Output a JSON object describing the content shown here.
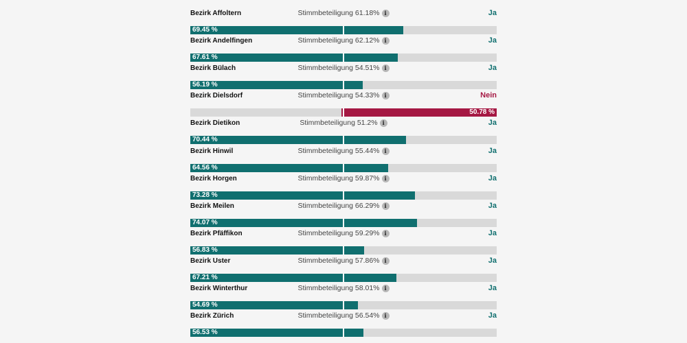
{
  "chart_data": {
    "type": "bar",
    "turnout_label": "Stimmbeteiligung",
    "colors": {
      "yes": "#106f6f",
      "no": "#a51843",
      "base": "#d9d9d9"
    },
    "rows": [
      {
        "name": "Bezirk Affoltern",
        "turnout": "61.18%",
        "result": "Ja",
        "share": 69.45,
        "share_label": "69.45 %"
      },
      {
        "name": "Bezirk Andelfingen",
        "turnout": "62.12%",
        "result": "Ja",
        "share": 67.61,
        "share_label": "67.61 %"
      },
      {
        "name": "Bezirk Bülach",
        "turnout": "54.51%",
        "result": "Ja",
        "share": 56.19,
        "share_label": "56.19 %"
      },
      {
        "name": "Bezirk Dielsdorf",
        "turnout": "54.33%",
        "result": "Nein",
        "share": 50.78,
        "share_label": "50.78 %"
      },
      {
        "name": "Bezirk Dietikon",
        "turnout": "51.2%",
        "result": "Ja",
        "share": 70.44,
        "share_label": "70.44 %"
      },
      {
        "name": "Bezirk Hinwil",
        "turnout": "55.44%",
        "result": "Ja",
        "share": 64.56,
        "share_label": "64.56 %"
      },
      {
        "name": "Bezirk Horgen",
        "turnout": "59.87%",
        "result": "Ja",
        "share": 73.28,
        "share_label": "73.28 %"
      },
      {
        "name": "Bezirk Meilen",
        "turnout": "66.29%",
        "result": "Ja",
        "share": 74.07,
        "share_label": "74.07 %"
      },
      {
        "name": "Bezirk Pfäffikon",
        "turnout": "59.29%",
        "result": "Ja",
        "share": 56.83,
        "share_label": "56.83 %"
      },
      {
        "name": "Bezirk Uster",
        "turnout": "57.86%",
        "result": "Ja",
        "share": 67.21,
        "share_label": "67.21 %"
      },
      {
        "name": "Bezirk Winterthur",
        "turnout": "58.01%",
        "result": "Ja",
        "share": 54.69,
        "share_label": "54.69 %"
      },
      {
        "name": "Bezirk Zürich",
        "turnout": "56.54%",
        "result": "Ja",
        "share": 56.53,
        "share_label": "56.53 %"
      }
    ]
  }
}
